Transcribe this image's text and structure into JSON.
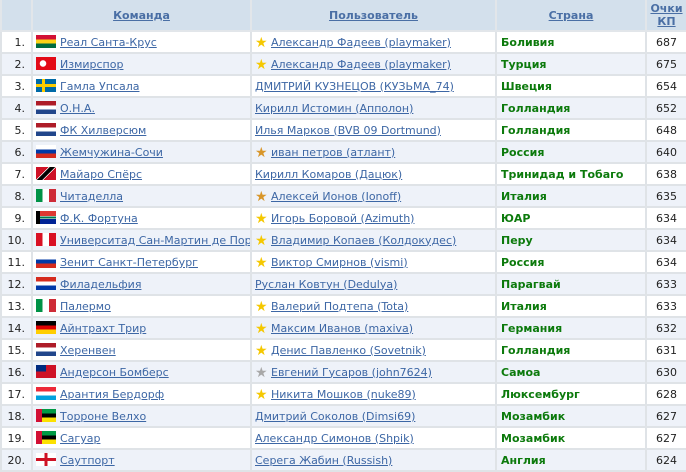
{
  "headers": {
    "team": "Команда",
    "user": "Пользователь",
    "country": "Страна",
    "points": "Очки КП"
  },
  "colors": {
    "header_bg": "#d3e0ec",
    "link": "#3d67a5",
    "country": "#0c7a0c",
    "even_row": "#eef2f9"
  },
  "rows": [
    {
      "rank": "1.",
      "flag": "ghana-flag",
      "team": "Реал Санта-Крус",
      "star": "gold",
      "user": "Александр Фадеев (playmaker)",
      "country": "Боливия",
      "points": "687"
    },
    {
      "rank": "2.",
      "flag": "turkey-flag",
      "team": "Измирспор",
      "star": "gold",
      "user": "Александр Фадеев (playmaker)",
      "country": "Турция",
      "points": "675"
    },
    {
      "rank": "3.",
      "flag": "sweden-flag",
      "team": "Гамла Упсала",
      "star": "none",
      "user": "ДМИТРИЙ КУЗНЕЦОВ (КУЗЬМА_74)",
      "country": "Швеция",
      "points": "654"
    },
    {
      "rank": "4.",
      "flag": "netherlands-flag",
      "team": "О.Н.А.",
      "star": "none",
      "user": "Кирилл Истомин (Апполон)",
      "country": "Голландия",
      "points": "652"
    },
    {
      "rank": "5.",
      "flag": "netherlands-flag",
      "team": "ФК Хилверсюм",
      "star": "none",
      "user": "Илья Марков (BVB 09 Dortmund)",
      "country": "Голландия",
      "points": "648"
    },
    {
      "rank": "6.",
      "flag": "russia-flag",
      "team": "Жемчужина-Сочи",
      "star": "bronze",
      "user": "иван петров (атлант)",
      "country": "Россия",
      "points": "640"
    },
    {
      "rank": "7.",
      "flag": "trinidad-flag",
      "team": "Майаро Спёрс",
      "star": "none",
      "user": "Кирилл Комаров (Дацюк)",
      "country": "Тринидад и Тобаго",
      "points": "638"
    },
    {
      "rank": "8.",
      "flag": "italy-flag",
      "team": "Читаделла",
      "star": "bronze",
      "user": "Алексей Ионов (Ionoff)",
      "country": "Италия",
      "points": "635"
    },
    {
      "rank": "9.",
      "flag": "south-africa-flag",
      "team": "Ф.К. Фортуна",
      "star": "gold",
      "user": "Игорь Боровой (Azimuth)",
      "country": "ЮАР",
      "points": "634"
    },
    {
      "rank": "10.",
      "flag": "peru-flag",
      "team": "Университад Сан-Мартин де Порр",
      "star": "gold",
      "user": "Владимир Копаев (Колдокудес)",
      "country": "Перу",
      "points": "634"
    },
    {
      "rank": "11.",
      "flag": "russia-flag",
      "team": "Зенит Санкт-Петербург",
      "star": "gold",
      "user": "Виктор Смирнов (vismi)",
      "country": "Россия",
      "points": "634"
    },
    {
      "rank": "12.",
      "flag": "paraguay-flag",
      "team": "Филадельфия",
      "star": "none",
      "user": "Руслан Ковтун (Dedulya)",
      "country": "Парагвай",
      "points": "633"
    },
    {
      "rank": "13.",
      "flag": "italy-flag",
      "team": "Палермо",
      "star": "gold",
      "user": "Валерий Подтепа (Tota)",
      "country": "Италия",
      "points": "633"
    },
    {
      "rank": "14.",
      "flag": "germany-flag",
      "team": "Айнтрахт Трир",
      "star": "gold",
      "user": "Максим Иванов (maxiva)",
      "country": "Германия",
      "points": "632"
    },
    {
      "rank": "15.",
      "flag": "netherlands-flag",
      "team": "Херенвен",
      "star": "gold",
      "user": "Денис Павленко (Sovetnik)",
      "country": "Голландия",
      "points": "631"
    },
    {
      "rank": "16.",
      "flag": "samoa-flag",
      "team": "Андерсон Бомберс",
      "star": "silver",
      "user": "Евгений Гусаров (john7624)",
      "country": "Самоа",
      "points": "630"
    },
    {
      "rank": "17.",
      "flag": "luxembourg-flag",
      "team": "Арантия Бердорф",
      "star": "gold",
      "user": "Никита Мошков (nuke89)",
      "country": "Люксембург",
      "points": "628"
    },
    {
      "rank": "18.",
      "flag": "mozambique-flag",
      "team": "Торроне Велхо",
      "star": "none",
      "user": "Дмитрий Соколов (Dimsi69)",
      "country": "Мозамбик",
      "points": "627"
    },
    {
      "rank": "19.",
      "flag": "mozambique-flag",
      "team": "Сагуар",
      "star": "none",
      "user": "Александр Симонов (Shpik)",
      "country": "Мозамбик",
      "points": "627"
    },
    {
      "rank": "20.",
      "flag": "england-flag",
      "team": "Саутпорт",
      "star": "none",
      "user": "Серега Жабин (Russish)",
      "country": "Англия",
      "points": "624"
    }
  ]
}
